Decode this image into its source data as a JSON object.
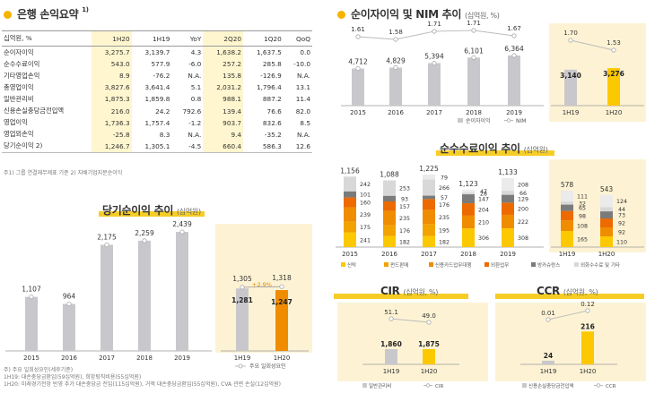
{
  "summary": {
    "title": "은행 손익요약",
    "title_sup": "1)",
    "headers": [
      "십억원, %",
      "1H20",
      "1H19",
      "YoY",
      "2Q20",
      "1Q20",
      "QoQ"
    ],
    "rows": [
      [
        "순이자이익",
        "3,275.7",
        "3,139.7",
        "4.3",
        "1,638.2",
        "1,637.5",
        "0.0"
      ],
      [
        "순수수료이익",
        "543.0",
        "577.9",
        "-6.0",
        "257.2",
        "285.8",
        "-10.0"
      ],
      [
        "기타영업손익",
        "8.9",
        "-76.2",
        "N.A.",
        "135.8",
        "-126.9",
        "N.A."
      ],
      [
        "총영업이익",
        "3,827.6",
        "3,641.4",
        "5.1",
        "2,031.2",
        "1,796.4",
        "13.1"
      ],
      [
        "일반관리비",
        "1,875.3",
        "1,859.8",
        "0.8",
        "988.1",
        "887.2",
        "11.4"
      ],
      [
        "신용손실충당금전입액",
        "216.0",
        "24.2",
        "792.6",
        "139.4",
        "76.6",
        "82.0"
      ],
      [
        "영업이익",
        "1,736.3",
        "1,757.4",
        "-1.2",
        "903.7",
        "832.6",
        "8.5"
      ],
      [
        "영업외손익",
        "-25.8",
        "8.3",
        "N.A.",
        "9.4",
        "-35.2",
        "N.A."
      ],
      [
        "당기순이익 2)",
        "1,246.7",
        "1,305.1",
        "-4.5",
        "660.4",
        "586.3",
        "12.6"
      ]
    ],
    "footnote": "주1) 그룹 연결재무제표 기준   2) 지배기업지분순이익"
  },
  "colors": {
    "gray_bar": "#c8c8cc",
    "yellow": "#fcc800",
    "orange": "#f08c00",
    "light_yellow": "#fbe48a",
    "line": "#bbbbbb",
    "panel": "#fdf3d4"
  },
  "net_income": {
    "title": "당기순이익 추이",
    "unit": "(십억원)",
    "legend": "주요 일회성요인",
    "growth_label": "+2.9%",
    "footnote_lines": [
      "주) 주요 일회성요인(세후기준)",
      "1H19: 대손충당금환입(59십억원), 희망퇴직비용(55십억원)",
      "1H20: 미래경기전망 반영 추가 대손충당금 전입(115십억원), 거액 대손충당금환입(55십억원), CVA 관련 손실(12십억원)"
    ]
  },
  "nim": {
    "title": "순이자이익 및 NIM 추이",
    "unit": "(십억원, %)",
    "legend": [
      "순이자이익",
      "NIM"
    ]
  },
  "fee": {
    "title": "순수수료이익 추이",
    "unit": "(십억원)",
    "legend": [
      "신탁",
      "펀드판매",
      "신용카드업무대행",
      "외환업무",
      "방카슈랑스",
      "외화수수료 및 기타"
    ]
  },
  "cir": {
    "title": "CIR",
    "unit": "(십억원, %)",
    "legend": [
      "일반관리비",
      "CIR"
    ]
  },
  "ccr": {
    "title": "CCR",
    "unit": "(십억원, %)",
    "legend": [
      "신용손실충당금전입액",
      "CCR"
    ]
  },
  "chart_data": [
    {
      "type": "bar",
      "title": "당기순이익 추이",
      "categories": [
        "2015",
        "2016",
        "2017",
        "2018",
        "2019",
        "1H19",
        "1H20"
      ],
      "series": [
        {
          "name": "당기순이익",
          "values": [
            1107,
            964,
            2175,
            2259,
            2439,
            1281,
            1247
          ]
        },
        {
          "name": "주요 일회성요인",
          "values": [
            null,
            null,
            null,
            null,
            null,
            1305,
            1318
          ]
        }
      ],
      "ylim": [
        0,
        2600
      ]
    },
    {
      "type": "bar",
      "title": "순이자이익 및 NIM 추이",
      "categories": [
        "2015",
        "2016",
        "2017",
        "2018",
        "2019",
        "1H19",
        "1H20"
      ],
      "series": [
        {
          "name": "순이자이익",
          "values": [
            4712,
            4829,
            5394,
            6101,
            6364,
            3140,
            3276
          ]
        },
        {
          "name": "NIM",
          "values": [
            1.61,
            1.58,
            1.71,
            1.71,
            1.67,
            1.7,
            1.53
          ]
        }
      ]
    },
    {
      "type": "bar",
      "title": "순수수료이익 추이",
      "categories": [
        "2015",
        "2016",
        "2017",
        "2018",
        "2019",
        "1H19",
        "1H20"
      ],
      "totals": [
        1156,
        1088,
        1225,
        1123,
        1133,
        578,
        543
      ],
      "series": [
        {
          "name": "신탁",
          "values": [
            241,
            182,
            182,
            306,
            308,
            165,
            110
          ]
        },
        {
          "name": "펀드판매",
          "values": [
            175,
            176,
            195,
            null,
            null,
            null,
            null
          ]
        },
        {
          "name": "신용카드업무대행",
          "values": [
            239,
            235,
            235,
            210,
            222,
            108,
            92
          ]
        },
        {
          "name": "외환업무",
          "values": [
            160,
            157,
            176,
            204,
            200,
            98,
            92
          ]
        },
        {
          "name": "방카슈랑스",
          "values": [
            101,
            93,
            57,
            147,
            129,
            65,
            73
          ]
        },
        {
          "name": "외화수수료 및 기타",
          "values": [
            242,
            253,
            266,
            28,
            66,
            32,
            44
          ]
        },
        {
          "name": "기타",
          "values": [
            null,
            null,
            79,
            47,
            208,
            111,
            124
          ]
        }
      ]
    },
    {
      "type": "bar",
      "title": "CIR",
      "categories": [
        "1H19",
        "1H20"
      ],
      "series": [
        {
          "name": "일반관리비",
          "values": [
            1860,
            1875
          ]
        },
        {
          "name": "CIR",
          "values": [
            51.1,
            49.0
          ]
        }
      ]
    },
    {
      "type": "bar",
      "title": "CCR",
      "categories": [
        "1H19",
        "1H20"
      ],
      "series": [
        {
          "name": "신용손실충당금전입액",
          "values": [
            24,
            216
          ]
        },
        {
          "name": "CCR",
          "values": [
            0.01,
            0.12
          ]
        }
      ]
    }
  ]
}
